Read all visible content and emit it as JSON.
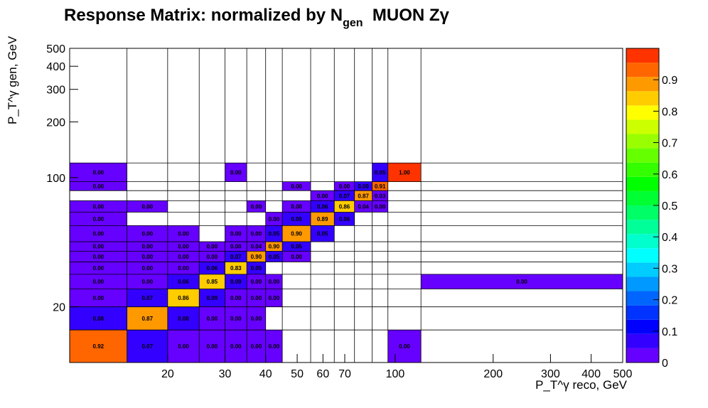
{
  "title": {
    "main": "Response Matrix: normalized by N",
    "sub": "gen",
    "tail": "MUON Zγ"
  },
  "chart_data": {
    "type": "heatmap",
    "title": "Response Matrix: normalized by N gen MUON Zγ",
    "xlabel": "P_T^γ reco, GeV",
    "ylabel": "P_T^γ gen, GeV",
    "x_scale": "log",
    "y_scale": "log",
    "xlim": [
      10,
      500
    ],
    "ylim": [
      10,
      500
    ],
    "x_bin_edges": [
      10,
      15,
      20,
      25,
      30,
      35,
      40,
      45,
      55,
      65,
      75,
      85,
      95,
      120,
      500
    ],
    "y_bin_edges": [
      10,
      15,
      20,
      25,
      30,
      35,
      40,
      45,
      55,
      65,
      75,
      85,
      95,
      120,
      500
    ],
    "x_ticks": [
      "20",
      "30",
      "40",
      "50",
      "60",
      "70",
      "100",
      "200",
      "300",
      "400",
      "500"
    ],
    "x_tick_values": [
      20,
      30,
      40,
      50,
      60,
      70,
      100,
      200,
      300,
      400,
      500
    ],
    "y_ticks": [
      "20",
      "100",
      "200",
      "300",
      "400",
      "500"
    ],
    "y_tick_values": [
      20,
      100,
      200,
      300,
      400,
      500
    ],
    "colorbar": {
      "min": 0,
      "max": 1,
      "ticks": [
        "0",
        "0.1",
        "0.2",
        "0.3",
        "0.4",
        "0.5",
        "0.6",
        "0.7",
        "0.8",
        "0.9"
      ],
      "tick_values": [
        0,
        0.1,
        0.2,
        0.3,
        0.4,
        0.5,
        0.6,
        0.7,
        0.8,
        0.9
      ],
      "palette": [
        "#6600ff",
        "#3300ff",
        "#0000ff",
        "#0033ff",
        "#0066ff",
        "#0099ff",
        "#00ccff",
        "#00ffff",
        "#00ffcc",
        "#00ff99",
        "#00ff66",
        "#00ff33",
        "#00ff00",
        "#33ff00",
        "#66ff00",
        "#99ff00",
        "#ccff00",
        "#ffff00",
        "#ffcc00",
        "#ff9900",
        "#ff6600",
        "#ff3300"
      ]
    },
    "cells": [
      {
        "x": 0,
        "y": 0,
        "label": "0.92",
        "value": 0.92
      },
      {
        "x": 1,
        "y": 0,
        "label": "0.07",
        "value": 0.07
      },
      {
        "x": 2,
        "y": 0,
        "label": "0.00",
        "value": 0.0
      },
      {
        "x": 3,
        "y": 0,
        "label": "0.00",
        "value": 0.0
      },
      {
        "x": 4,
        "y": 0,
        "label": "0.00",
        "value": 0.0
      },
      {
        "x": 5,
        "y": 0,
        "label": "0.00",
        "value": 0.0
      },
      {
        "x": 6,
        "y": 0,
        "label": "0.00",
        "value": 0.0
      },
      {
        "x": 12,
        "y": 0,
        "label": "0.00",
        "value": 0.0
      },
      {
        "x": 0,
        "y": 1,
        "label": "0.08",
        "value": 0.08
      },
      {
        "x": 1,
        "y": 1,
        "label": "0.87",
        "value": 0.87
      },
      {
        "x": 2,
        "y": 1,
        "label": "0.08",
        "value": 0.08
      },
      {
        "x": 3,
        "y": 1,
        "label": "0.00",
        "value": 0.0
      },
      {
        "x": 4,
        "y": 1,
        "label": "0.00",
        "value": 0.0
      },
      {
        "x": 5,
        "y": 1,
        "label": "0.00",
        "value": 0.0
      },
      {
        "x": 0,
        "y": 2,
        "label": "0.00",
        "value": 0.0
      },
      {
        "x": 1,
        "y": 2,
        "label": "0.07",
        "value": 0.07
      },
      {
        "x": 2,
        "y": 2,
        "label": "0.86",
        "value": 0.86
      },
      {
        "x": 3,
        "y": 2,
        "label": "0.09",
        "value": 0.09
      },
      {
        "x": 4,
        "y": 2,
        "label": "0.00",
        "value": 0.0
      },
      {
        "x": 5,
        "y": 2,
        "label": "0.00",
        "value": 0.0
      },
      {
        "x": 6,
        "y": 2,
        "label": "0.00",
        "value": 0.0
      },
      {
        "x": 0,
        "y": 3,
        "label": "0.00",
        "value": 0.0
      },
      {
        "x": 1,
        "y": 3,
        "label": "0.00",
        "value": 0.0
      },
      {
        "x": 2,
        "y": 3,
        "label": "0.06",
        "value": 0.06
      },
      {
        "x": 3,
        "y": 3,
        "label": "0.85",
        "value": 0.85
      },
      {
        "x": 4,
        "y": 3,
        "label": "0.09",
        "value": 0.09
      },
      {
        "x": 5,
        "y": 3,
        "label": "0.00",
        "value": 0.0
      },
      {
        "x": 6,
        "y": 3,
        "label": "0.00",
        "value": 0.0
      },
      {
        "x": 13,
        "y": 3,
        "label": "0.00",
        "value": 0.0
      },
      {
        "x": 0,
        "y": 4,
        "label": "0.00",
        "value": 0.0
      },
      {
        "x": 1,
        "y": 4,
        "label": "0.00",
        "value": 0.0
      },
      {
        "x": 2,
        "y": 4,
        "label": "0.00",
        "value": 0.0
      },
      {
        "x": 3,
        "y": 4,
        "label": "0.06",
        "value": 0.06
      },
      {
        "x": 4,
        "y": 4,
        "label": "0.83",
        "value": 0.83
      },
      {
        "x": 5,
        "y": 4,
        "label": "0.05",
        "value": 0.05
      },
      {
        "x": 0,
        "y": 5,
        "label": "0.00",
        "value": 0.0
      },
      {
        "x": 1,
        "y": 5,
        "label": "0.00",
        "value": 0.0
      },
      {
        "x": 2,
        "y": 5,
        "label": "0.00",
        "value": 0.0
      },
      {
        "x": 3,
        "y": 5,
        "label": "0.00",
        "value": 0.0
      },
      {
        "x": 4,
        "y": 5,
        "label": "0.07",
        "value": 0.07
      },
      {
        "x": 5,
        "y": 5,
        "label": "0.90",
        "value": 0.9
      },
      {
        "x": 6,
        "y": 5,
        "label": "0.05",
        "value": 0.05
      },
      {
        "x": 7,
        "y": 5,
        "label": "0.00",
        "value": 0.0
      },
      {
        "x": 0,
        "y": 6,
        "label": "0.00",
        "value": 0.0
      },
      {
        "x": 1,
        "y": 6,
        "label": "0.00",
        "value": 0.0
      },
      {
        "x": 2,
        "y": 6,
        "label": "0.00",
        "value": 0.0
      },
      {
        "x": 3,
        "y": 6,
        "label": "0.00",
        "value": 0.0
      },
      {
        "x": 4,
        "y": 6,
        "label": "0.00",
        "value": 0.0
      },
      {
        "x": 5,
        "y": 6,
        "label": "0.04",
        "value": 0.04
      },
      {
        "x": 6,
        "y": 6,
        "label": "0.90",
        "value": 0.9
      },
      {
        "x": 7,
        "y": 6,
        "label": "0.05",
        "value": 0.05
      },
      {
        "x": 0,
        "y": 7,
        "label": "0.00",
        "value": 0.0
      },
      {
        "x": 1,
        "y": 7,
        "label": "0.00",
        "value": 0.0
      },
      {
        "x": 2,
        "y": 7,
        "label": "0.00",
        "value": 0.0
      },
      {
        "x": 4,
        "y": 7,
        "label": "0.00",
        "value": 0.0
      },
      {
        "x": 5,
        "y": 7,
        "label": "0.00",
        "value": 0.0
      },
      {
        "x": 6,
        "y": 7,
        "label": "0.05",
        "value": 0.05
      },
      {
        "x": 7,
        "y": 7,
        "label": "0.90",
        "value": 0.9
      },
      {
        "x": 8,
        "y": 7,
        "label": "0.05",
        "value": 0.05
      },
      {
        "x": 0,
        "y": 8,
        "label": "0.00",
        "value": 0.0
      },
      {
        "x": 6,
        "y": 8,
        "label": "0.00",
        "value": 0.0
      },
      {
        "x": 7,
        "y": 8,
        "label": "0.05",
        "value": 0.05
      },
      {
        "x": 8,
        "y": 8,
        "label": "0.89",
        "value": 0.89
      },
      {
        "x": 9,
        "y": 8,
        "label": "0.06",
        "value": 0.06
      },
      {
        "x": 0,
        "y": 9,
        "label": "0.00",
        "value": 0.0
      },
      {
        "x": 1,
        "y": 9,
        "label": "0.00",
        "value": 0.0
      },
      {
        "x": 5,
        "y": 9,
        "label": "0.00",
        "value": 0.0
      },
      {
        "x": 7,
        "y": 9,
        "label": "0.00",
        "value": 0.0
      },
      {
        "x": 8,
        "y": 9,
        "label": "0.06",
        "value": 0.06
      },
      {
        "x": 9,
        "y": 9,
        "label": "0.86",
        "value": 0.86
      },
      {
        "x": 10,
        "y": 9,
        "label": "0.04",
        "value": 0.04
      },
      {
        "x": 11,
        "y": 9,
        "label": "0.00",
        "value": 0.0
      },
      {
        "x": 8,
        "y": 10,
        "label": "0.00",
        "value": 0.0
      },
      {
        "x": 9,
        "y": 10,
        "label": "0.07",
        "value": 0.07
      },
      {
        "x": 10,
        "y": 10,
        "label": "0.87",
        "value": 0.87
      },
      {
        "x": 11,
        "y": 10,
        "label": "0.03",
        "value": 0.03
      },
      {
        "x": 0,
        "y": 11,
        "label": "0.00",
        "value": 0.0
      },
      {
        "x": 7,
        "y": 11,
        "label": "0.00",
        "value": 0.0
      },
      {
        "x": 9,
        "y": 11,
        "label": "0.00",
        "value": 0.0
      },
      {
        "x": 10,
        "y": 11,
        "label": "0.09",
        "value": 0.09
      },
      {
        "x": 11,
        "y": 11,
        "label": "0.91",
        "value": 0.91
      },
      {
        "x": 0,
        "y": 12,
        "label": "0.00",
        "value": 0.0
      },
      {
        "x": 4,
        "y": 12,
        "label": "0.00",
        "value": 0.0
      },
      {
        "x": 11,
        "y": 12,
        "label": "0.05",
        "value": 0.05
      },
      {
        "x": 12,
        "y": 12,
        "label": "1.00",
        "value": 1.0
      }
    ]
  }
}
